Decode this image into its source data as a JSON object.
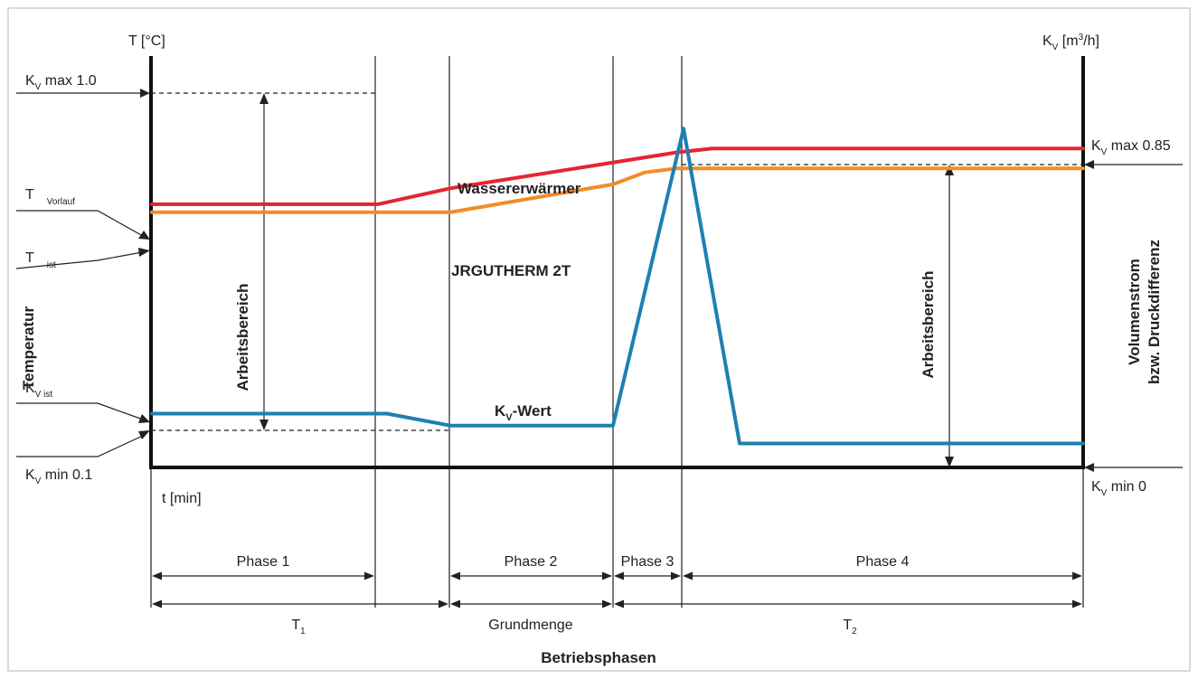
{
  "chart_data": {
    "type": "line",
    "axes": {
      "left_unit": "T [°C]",
      "right_unit_main": "K",
      "right_unit_sub": "V",
      "right_unit_rest": " [m",
      "right_unit_sup": "3",
      "right_unit_end": "/h]",
      "x_unit": "t [min]",
      "left_title": "Temperatur",
      "right_title_line1": "Volumenstrom",
      "right_title_line2": "bzw. Druckdifferenz",
      "x_title": "Betriebsphasen"
    },
    "left_markers": {
      "kv_max_main": "K",
      "kv_max_sub": "V",
      "kv_max_rest": " max 1.0",
      "t_vorlauf_main": "T",
      "t_vorlauf_sub": "Vorlauf",
      "t_ist_main": "T",
      "t_ist_sub": "ist",
      "kv_ist_main": "K",
      "kv_ist_sub": "V ist",
      "kv_min_main": "K",
      "kv_min_sub": "V",
      "kv_min_rest": " min 0.1"
    },
    "right_markers": {
      "kv_max_main": "K",
      "kv_max_sub": "V",
      "kv_max_rest": " max 0.85",
      "kv_min_main": "K",
      "kv_min_sub": "V",
      "kv_min_rest": " min 0"
    },
    "range_labels": {
      "left": "Arbeitsbereich",
      "right": "Arbeitsbereich"
    },
    "series": [
      {
        "name": "Wassererwärmer",
        "color": "#e52530",
        "points": [
          [
            0,
            0.66
          ],
          [
            250,
            0.66
          ],
          [
            330,
            0.7
          ],
          [
            580,
            0.79
          ],
          [
            620,
            0.8
          ],
          [
            1030,
            0.8
          ]
        ]
      },
      {
        "name": "JRGUTHERM 2T",
        "color": "#f28c28",
        "points": [
          [
            0,
            0.64
          ],
          [
            330,
            0.64
          ],
          [
            510,
            0.71
          ],
          [
            545,
            0.74
          ],
          [
            580,
            0.75
          ],
          [
            1030,
            0.75
          ]
        ]
      },
      {
        "name_main": "K",
        "name_sub": "V",
        "name_rest": "-Wert",
        "color": "#1f7fb0",
        "points": [
          [
            0,
            0.135
          ],
          [
            260,
            0.135
          ],
          [
            330,
            0.105
          ],
          [
            510,
            0.105
          ],
          [
            588,
            0.85
          ],
          [
            650,
            0.06
          ],
          [
            1030,
            0.06
          ]
        ]
      }
    ],
    "phases": [
      "Phase 1",
      "Phase 2",
      "Phase 3",
      "Phase 4"
    ],
    "periods": [
      {
        "main": "T",
        "sub": "1"
      },
      {
        "main": "Grundmenge",
        "sub": ""
      },
      {
        "main": "T",
        "sub": "2"
      }
    ]
  }
}
